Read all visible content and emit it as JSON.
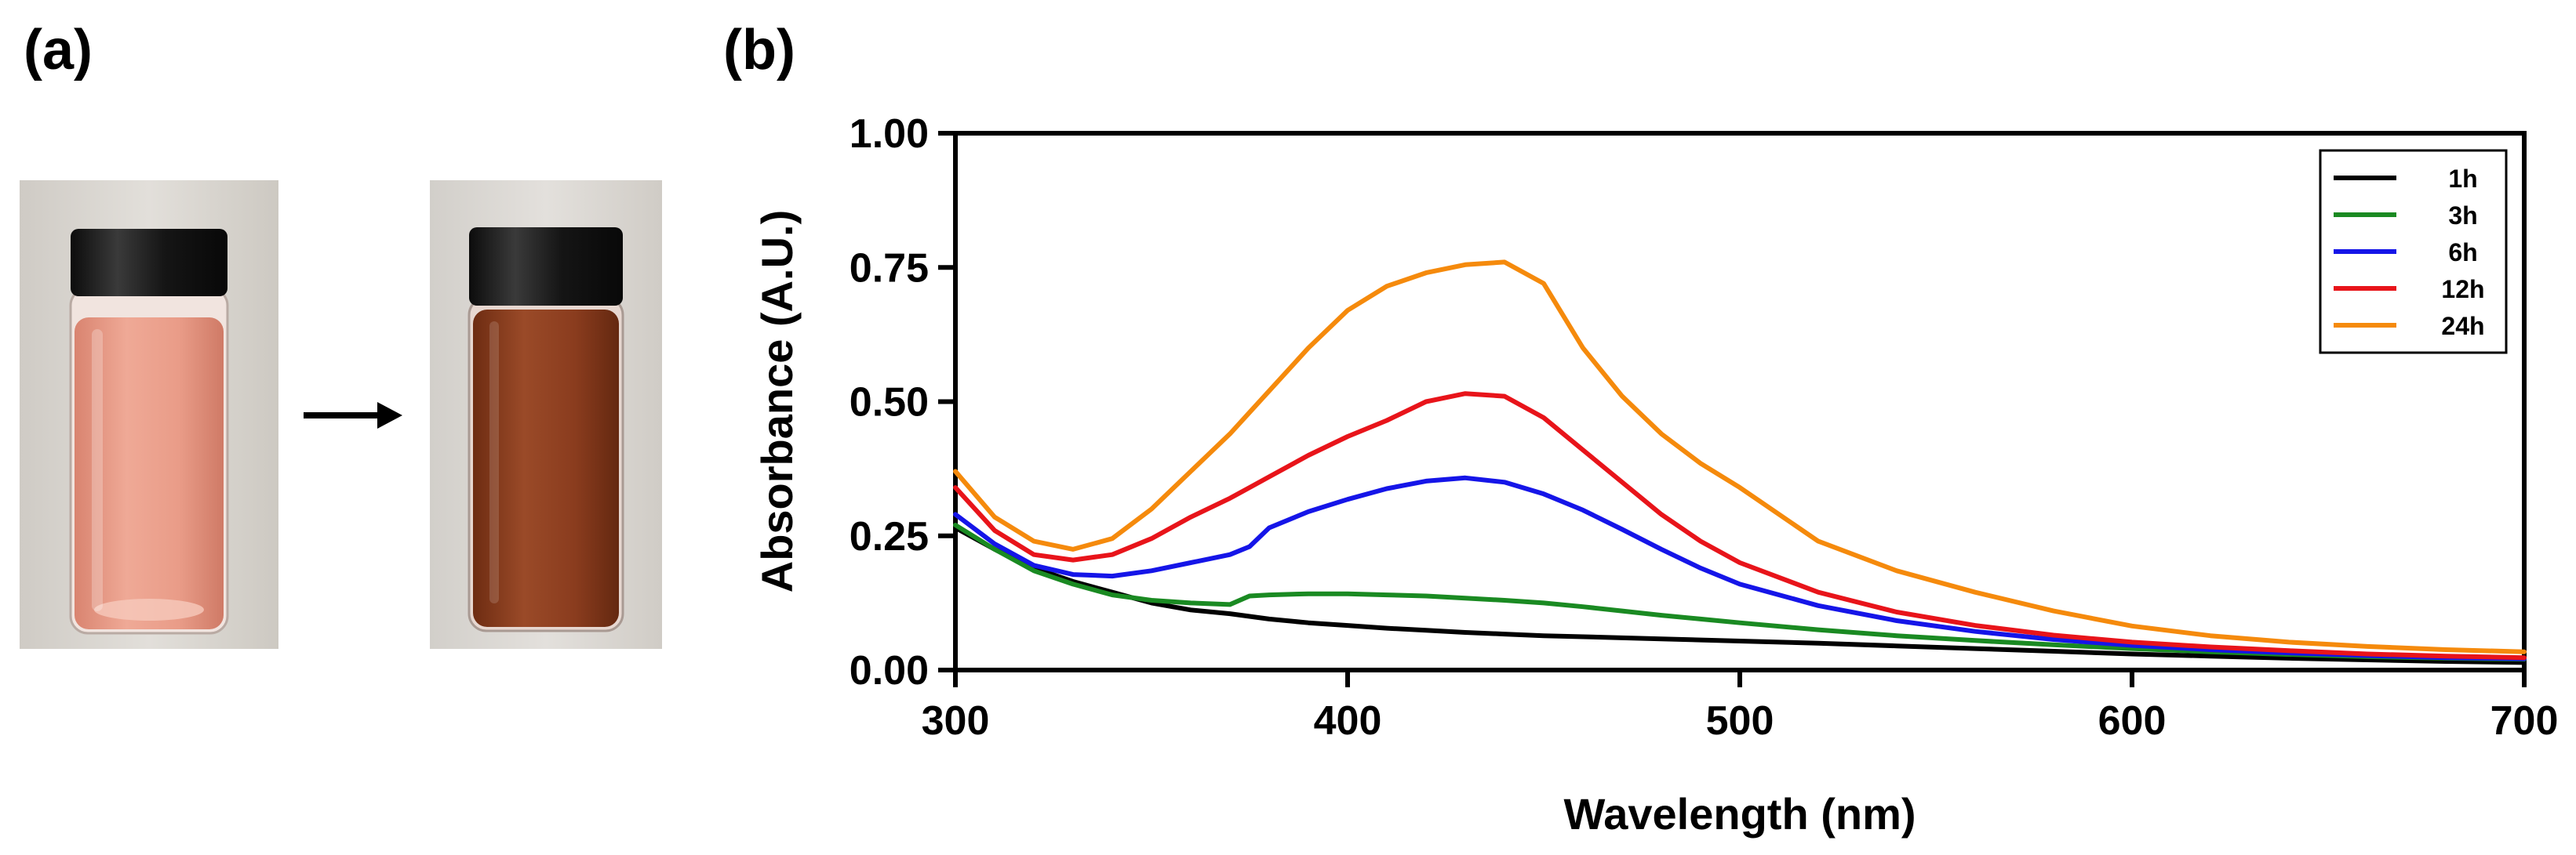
{
  "panels": {
    "a": "(a)",
    "b": "(b)"
  },
  "colors": {
    "liquid_before": "#e9a08c",
    "liquid_after": "#8a3c1e",
    "cap": "#161616",
    "photo_bg": "#d9d6d1"
  },
  "chart_data": {
    "type": "line",
    "xlabel": "Wavelength (nm)",
    "ylabel": "Absorbance (A.U.)",
    "xlim": [
      300,
      700
    ],
    "ylim": [
      0,
      1
    ],
    "xticks": [
      "300",
      "400",
      "500",
      "600",
      "700"
    ],
    "yticks": [
      "0.00",
      "0.25",
      "0.50",
      "0.75",
      "1.00"
    ],
    "x": [
      300,
      310,
      320,
      330,
      340,
      350,
      360,
      370,
      375,
      380,
      390,
      400,
      410,
      420,
      430,
      440,
      450,
      460,
      470,
      480,
      490,
      500,
      520,
      540,
      560,
      580,
      600,
      620,
      640,
      660,
      680,
      700
    ],
    "legend_position": "top-right",
    "series": [
      {
        "name": "1h",
        "color": "#000000",
        "values": [
          0.265,
          0.225,
          0.19,
          0.165,
          0.145,
          0.125,
          0.112,
          0.105,
          0.1,
          0.095,
          0.088,
          0.083,
          0.078,
          0.074,
          0.07,
          0.067,
          0.064,
          0.062,
          0.06,
          0.058,
          0.056,
          0.054,
          0.05,
          0.045,
          0.04,
          0.035,
          0.03,
          0.026,
          0.022,
          0.019,
          0.016,
          0.014
        ]
      },
      {
        "name": "3h",
        "color": "#1a8a22",
        "values": [
          0.27,
          0.225,
          0.185,
          0.16,
          0.14,
          0.13,
          0.125,
          0.122,
          0.138,
          0.14,
          0.142,
          0.142,
          0.14,
          0.138,
          0.134,
          0.13,
          0.125,
          0.118,
          0.11,
          0.102,
          0.095,
          0.088,
          0.075,
          0.064,
          0.055,
          0.047,
          0.04,
          0.034,
          0.029,
          0.025,
          0.022,
          0.02
        ]
      },
      {
        "name": "6h",
        "color": "#1515e8",
        "values": [
          0.29,
          0.235,
          0.195,
          0.178,
          0.175,
          0.185,
          0.2,
          0.215,
          0.23,
          0.265,
          0.295,
          0.318,
          0.338,
          0.352,
          0.358,
          0.35,
          0.328,
          0.298,
          0.262,
          0.225,
          0.19,
          0.16,
          0.12,
          0.092,
          0.072,
          0.057,
          0.046,
          0.038,
          0.032,
          0.027,
          0.023,
          0.021
        ]
      },
      {
        "name": "12h",
        "color": "#e8141a",
        "values": [
          0.34,
          0.26,
          0.215,
          0.205,
          0.215,
          0.245,
          0.285,
          0.32,
          0.34,
          0.36,
          0.4,
          0.435,
          0.465,
          0.5,
          0.515,
          0.51,
          0.47,
          0.41,
          0.35,
          0.29,
          0.24,
          0.2,
          0.145,
          0.108,
          0.083,
          0.065,
          0.052,
          0.043,
          0.036,
          0.03,
          0.026,
          0.023
        ]
      },
      {
        "name": "24h",
        "color": "#f58a0c",
        "values": [
          0.37,
          0.285,
          0.24,
          0.225,
          0.245,
          0.3,
          0.37,
          0.44,
          0.48,
          0.52,
          0.6,
          0.67,
          0.715,
          0.74,
          0.755,
          0.76,
          0.72,
          0.6,
          0.51,
          0.44,
          0.385,
          0.34,
          0.24,
          0.185,
          0.145,
          0.11,
          0.082,
          0.064,
          0.052,
          0.044,
          0.038,
          0.034
        ]
      }
    ]
  }
}
